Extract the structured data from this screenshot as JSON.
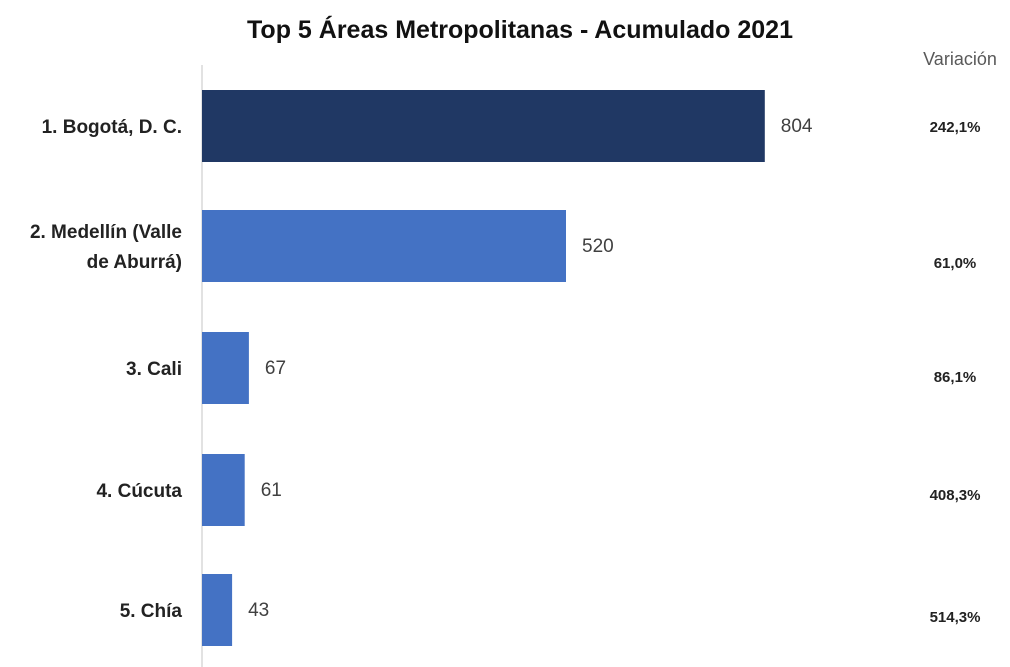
{
  "chart_data": {
    "type": "bar",
    "orientation": "horizontal",
    "title": "Top 5 Áreas Metropolitanas - Acumulado 2021",
    "categories": [
      [
        "1. Bogotá, D. C."
      ],
      [
        "2. Medellín (Valle",
        "de Aburrá)"
      ],
      [
        "3. Cali"
      ],
      [
        "4. Cúcuta"
      ],
      [
        "5. Chía"
      ]
    ],
    "values": [
      804,
      520,
      67,
      61,
      43
    ],
    "value_labels": [
      "804",
      "520",
      "67",
      "61",
      "43"
    ],
    "xlim": [
      0,
      900
    ],
    "grid": false,
    "legend": "none",
    "bar_colors": [
      "#203864",
      "#4472c4",
      "#4472c4",
      "#4472c4",
      "#4472c4"
    ],
    "variation_header": "Variación",
    "variation": [
      "242,1%",
      "61,0%",
      "86,1%",
      "408,3%",
      "514,3%"
    ]
  }
}
